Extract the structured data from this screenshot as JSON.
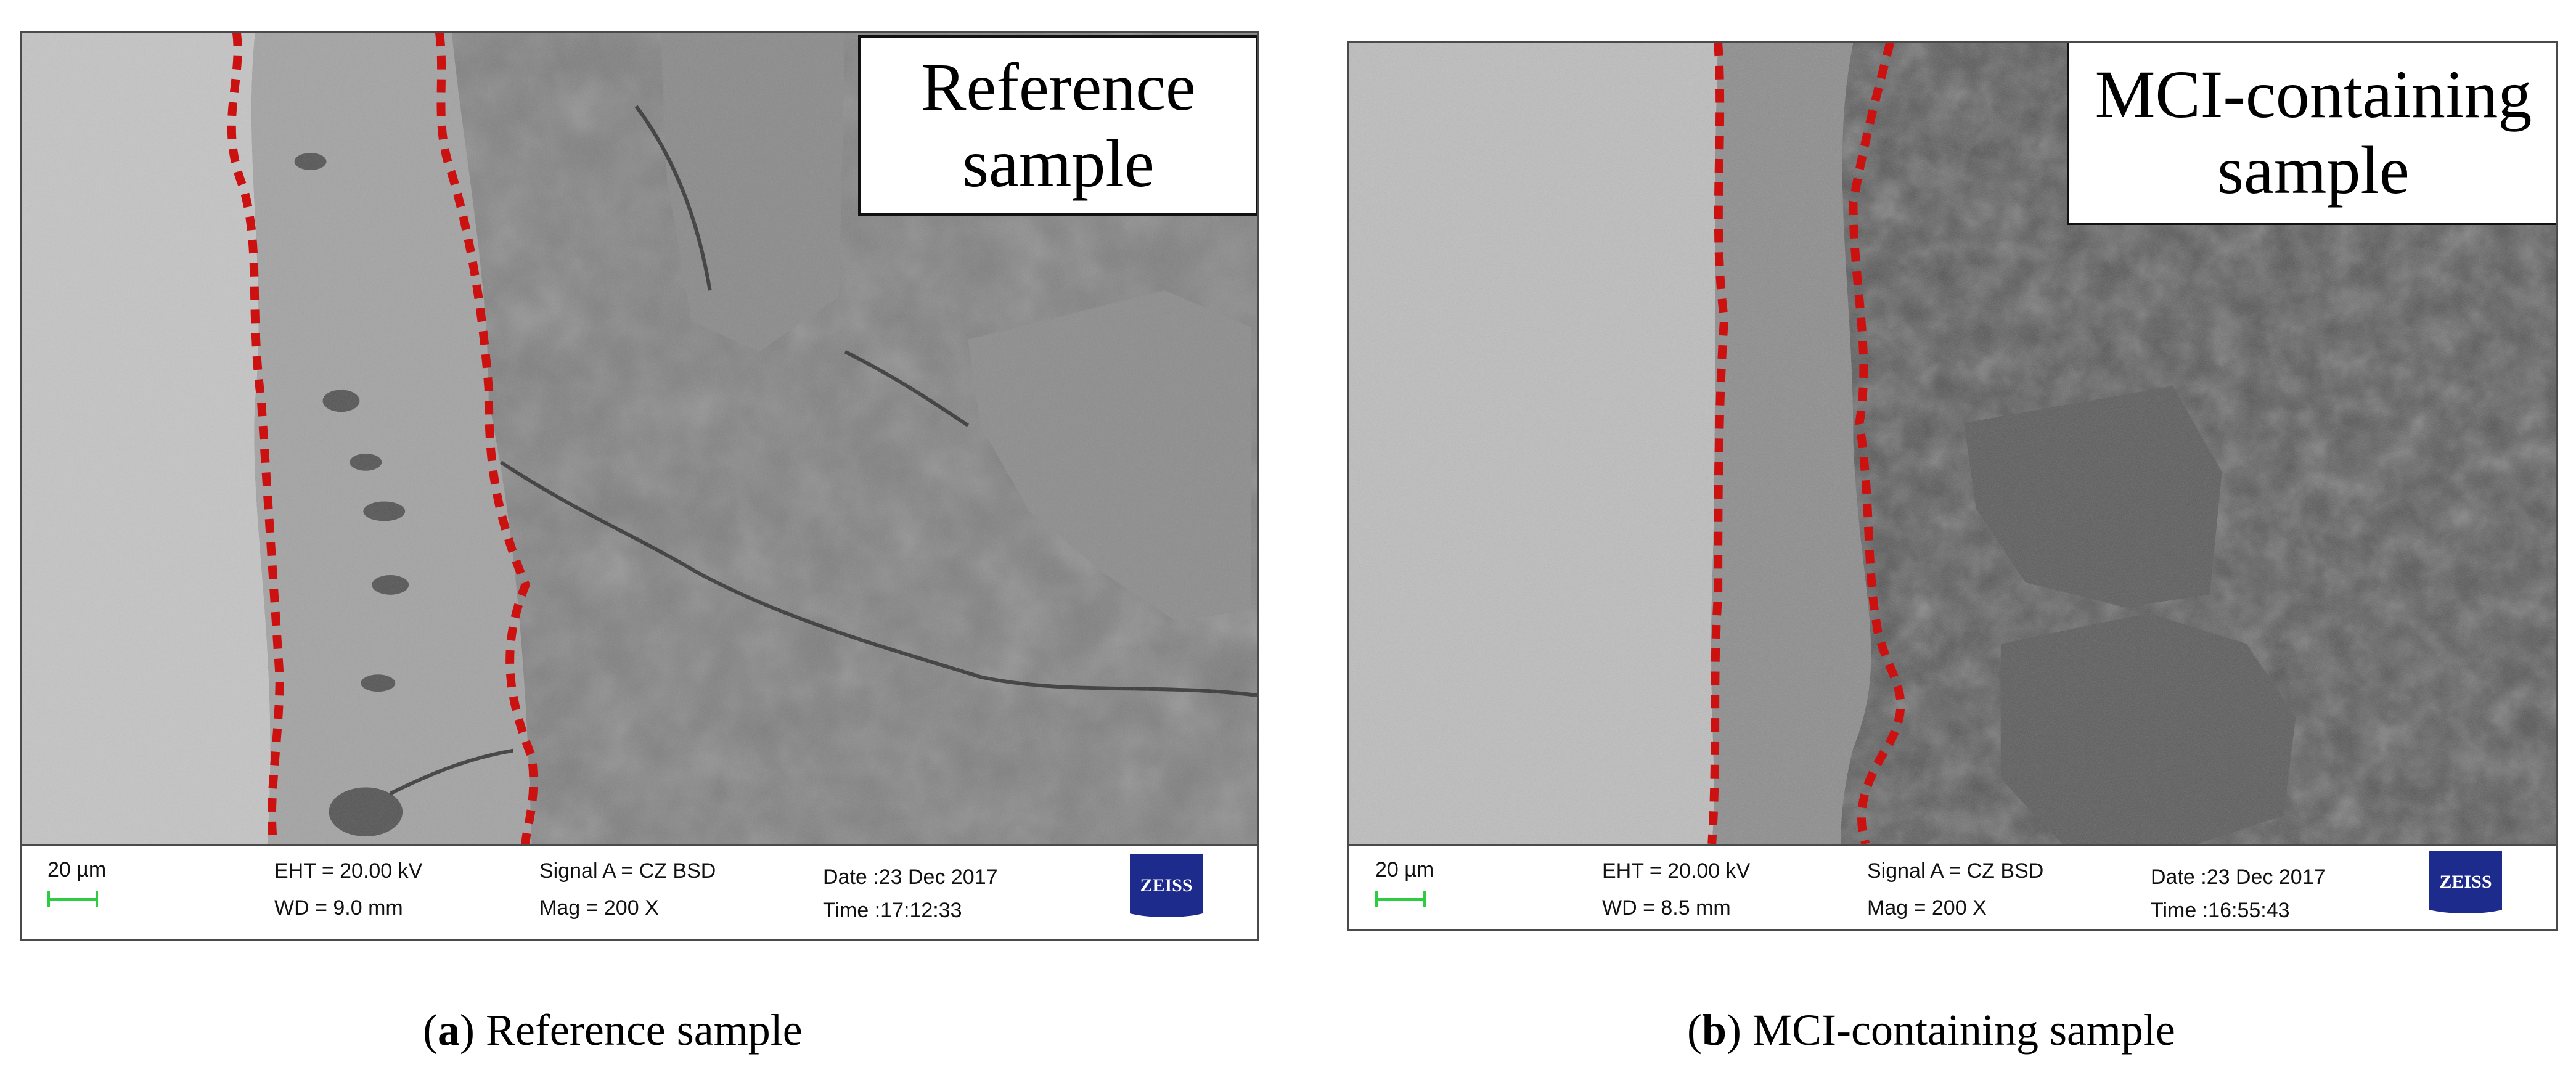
{
  "panel_a": {
    "label_line1": "Reference",
    "label_line2": "sample",
    "databar": {
      "scale": "20 µm",
      "eht": "EHT = 20.00 kV",
      "wd": "WD =  9.0 mm",
      "signal": "Signal A = CZ BSD",
      "mag": "Mag =    200 X",
      "date": "Date :23 Dec 2017",
      "time": "Time :17:12:33",
      "logo": "ZEISS"
    },
    "caption_letter": "a",
    "caption_text": "Reference sample"
  },
  "panel_b": {
    "label_line1": "MCI-containing",
    "label_line2": "sample",
    "databar": {
      "scale": "20 µm",
      "eht": "EHT = 20.00 kV",
      "wd": "WD =  8.5 mm",
      "signal": "Signal A = CZ BSD",
      "mag": "Mag =    200 X",
      "date": "Date :23 Dec 2017",
      "time": "Time :16:55:43",
      "logo": "ZEISS"
    },
    "caption_letter": "b",
    "caption_text": "MCI-containing sample"
  },
  "colors": {
    "boundary_line": "#cc1111",
    "scale_bar": "#2ecc40",
    "zeiss_logo": "#1d2b8c"
  }
}
